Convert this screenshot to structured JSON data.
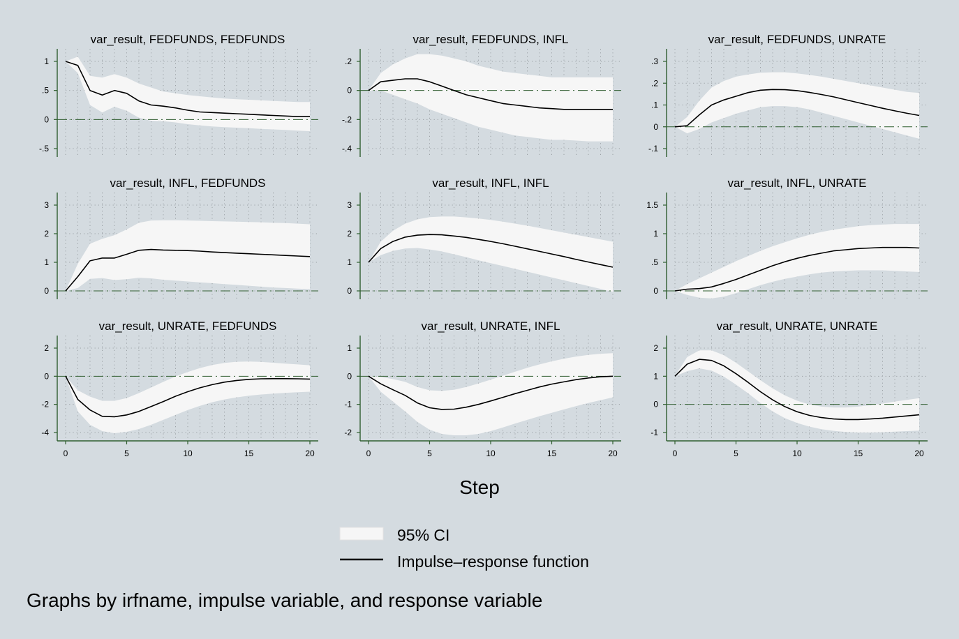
{
  "chart_data": {
    "type": "line",
    "xlabel": "Step",
    "x": [
      0,
      1,
      2,
      3,
      4,
      5,
      6,
      7,
      8,
      9,
      10,
      11,
      12,
      13,
      14,
      15,
      16,
      17,
      18,
      19,
      20
    ],
    "xticks": [
      0,
      5,
      10,
      15,
      20
    ],
    "xlim": [
      0,
      20
    ],
    "grid": true,
    "legend": {
      "position": "bottom-center",
      "entries": [
        {
          "name": "95% CI",
          "color": "#f6f6f6",
          "kind": "area"
        },
        {
          "name": "Impulse–response function",
          "color": "#000000",
          "kind": "line"
        }
      ]
    },
    "note": "Graphs by irfname, impulse variable, and response variable",
    "panels": [
      {
        "title": "var_result, FEDFUNDS, FEDFUNDS",
        "ylim": [
          -0.5,
          1
        ],
        "yticks": [
          {
            "v": -0.5,
            "label": "-.5"
          },
          {
            "v": 0,
            "label": "0"
          },
          {
            "v": 0.5,
            "label": ".5"
          },
          {
            "v": 1,
            "label": "1"
          }
        ],
        "irf": [
          1.0,
          0.93,
          0.5,
          0.42,
          0.5,
          0.45,
          0.32,
          0.25,
          0.23,
          0.2,
          0.16,
          0.13,
          0.12,
          0.11,
          0.1,
          0.09,
          0.08,
          0.07,
          0.06,
          0.05,
          0.05
        ],
        "upper": [
          1.0,
          1.08,
          0.75,
          0.72,
          0.78,
          0.72,
          0.62,
          0.55,
          0.48,
          0.45,
          0.42,
          0.4,
          0.38,
          0.36,
          0.35,
          0.34,
          0.33,
          0.32,
          0.31,
          0.3,
          0.3
        ],
        "lower": [
          1.0,
          0.8,
          0.25,
          0.12,
          0.22,
          0.15,
          0.03,
          -0.02,
          -0.03,
          -0.05,
          -0.08,
          -0.1,
          -0.12,
          -0.13,
          -0.14,
          -0.15,
          -0.16,
          -0.17,
          -0.18,
          -0.19,
          -0.2
        ]
      },
      {
        "title": "var_result, FEDFUNDS, INFL",
        "ylim": [
          -0.4,
          0.2
        ],
        "yticks": [
          {
            "v": -0.4,
            "label": "-.4"
          },
          {
            "v": -0.2,
            "label": "-.2"
          },
          {
            "v": 0,
            "label": "0"
          },
          {
            "v": 0.2,
            "label": ".2"
          }
        ],
        "irf": [
          0,
          0.06,
          0.07,
          0.08,
          0.08,
          0.06,
          0.03,
          0.0,
          -0.03,
          -0.05,
          -0.07,
          -0.09,
          -0.1,
          -0.11,
          -0.12,
          -0.125,
          -0.13,
          -0.13,
          -0.13,
          -0.13,
          -0.13
        ],
        "upper": [
          0,
          0.12,
          0.18,
          0.22,
          0.25,
          0.25,
          0.24,
          0.22,
          0.2,
          0.17,
          0.15,
          0.13,
          0.12,
          0.11,
          0.1,
          0.09,
          0.09,
          0.09,
          0.09,
          0.09,
          0.09
        ],
        "lower": [
          0,
          0.0,
          -0.03,
          -0.06,
          -0.09,
          -0.13,
          -0.16,
          -0.19,
          -0.22,
          -0.25,
          -0.27,
          -0.29,
          -0.31,
          -0.32,
          -0.33,
          -0.34,
          -0.34,
          -0.345,
          -0.35,
          -0.35,
          -0.35
        ]
      },
      {
        "title": "var_result, FEDFUNDS, UNRATE",
        "ylim": [
          -0.1,
          0.3
        ],
        "yticks": [
          {
            "v": -0.1,
            "label": "-.1"
          },
          {
            "v": 0,
            "label": "0"
          },
          {
            "v": 0.1,
            "label": ".1"
          },
          {
            "v": 0.2,
            "label": ".2"
          },
          {
            "v": 0.3,
            "label": ".3"
          }
        ],
        "irf": [
          0,
          0.005,
          0.055,
          0.1,
          0.123,
          0.14,
          0.157,
          0.168,
          0.171,
          0.17,
          0.166,
          0.158,
          0.148,
          0.137,
          0.124,
          0.111,
          0.098,
          0.085,
          0.073,
          0.062,
          0.052
        ],
        "upper": [
          0,
          0.045,
          0.12,
          0.18,
          0.21,
          0.23,
          0.24,
          0.248,
          0.25,
          0.25,
          0.245,
          0.238,
          0.23,
          0.22,
          0.21,
          0.2,
          0.19,
          0.18,
          0.17,
          0.16,
          0.155
        ],
        "lower": [
          0,
          -0.03,
          -0.01,
          0.02,
          0.04,
          0.06,
          0.075,
          0.09,
          0.095,
          0.095,
          0.09,
          0.08,
          0.065,
          0.05,
          0.035,
          0.02,
          0.005,
          -0.01,
          -0.025,
          -0.04,
          -0.055
        ]
      },
      {
        "title": "var_result, INFL, FEDFUNDS",
        "ylim": [
          0,
          3
        ],
        "yticks": [
          {
            "v": 0,
            "label": "0"
          },
          {
            "v": 1,
            "label": "1"
          },
          {
            "v": 2,
            "label": "2"
          },
          {
            "v": 3,
            "label": "3"
          }
        ],
        "irf": [
          0,
          0.5,
          1.05,
          1.15,
          1.15,
          1.28,
          1.42,
          1.45,
          1.43,
          1.42,
          1.41,
          1.39,
          1.36,
          1.34,
          1.32,
          1.3,
          1.28,
          1.26,
          1.24,
          1.22,
          1.2
        ],
        "upper": [
          0,
          0.95,
          1.65,
          1.82,
          1.95,
          2.15,
          2.38,
          2.46,
          2.47,
          2.47,
          2.46,
          2.45,
          2.44,
          2.43,
          2.42,
          2.41,
          2.4,
          2.38,
          2.37,
          2.35,
          2.33
        ],
        "lower": [
          0,
          0.1,
          0.42,
          0.45,
          0.38,
          0.41,
          0.46,
          0.44,
          0.39,
          0.36,
          0.33,
          0.3,
          0.27,
          0.24,
          0.21,
          0.18,
          0.15,
          0.12,
          0.1,
          0.08,
          0.06
        ]
      },
      {
        "title": "var_result, INFL, INFL",
        "ylim": [
          0,
          3
        ],
        "yticks": [
          {
            "v": 0,
            "label": "0"
          },
          {
            "v": 1,
            "label": "1"
          },
          {
            "v": 2,
            "label": "2"
          },
          {
            "v": 3,
            "label": "3"
          }
        ],
        "irf": [
          1.0,
          1.48,
          1.73,
          1.88,
          1.95,
          1.97,
          1.96,
          1.92,
          1.87,
          1.8,
          1.73,
          1.65,
          1.56,
          1.47,
          1.38,
          1.29,
          1.2,
          1.1,
          1.01,
          0.92,
          0.83
        ],
        "upper": [
          1.0,
          1.72,
          2.1,
          2.35,
          2.5,
          2.58,
          2.6,
          2.6,
          2.57,
          2.53,
          2.48,
          2.42,
          2.35,
          2.28,
          2.2,
          2.12,
          2.04,
          1.96,
          1.88,
          1.8,
          1.72
        ],
        "lower": [
          1.0,
          1.25,
          1.4,
          1.48,
          1.5,
          1.45,
          1.38,
          1.28,
          1.18,
          1.07,
          0.97,
          0.87,
          0.77,
          0.67,
          0.57,
          0.47,
          0.37,
          0.27,
          0.17,
          0.07,
          -0.03
        ]
      },
      {
        "title": "var_result, INFL, UNRATE",
        "ylim": [
          0,
          1.5
        ],
        "yticks": [
          {
            "v": 0,
            "label": "0"
          },
          {
            "v": 0.5,
            "label": ".5"
          },
          {
            "v": 1,
            "label": "1"
          },
          {
            "v": 1.5,
            "label": "1.5"
          }
        ],
        "irf": [
          0,
          0.03,
          0.04,
          0.07,
          0.13,
          0.2,
          0.28,
          0.36,
          0.44,
          0.51,
          0.57,
          0.62,
          0.66,
          0.7,
          0.72,
          0.74,
          0.75,
          0.76,
          0.76,
          0.76,
          0.75
        ],
        "upper": [
          0,
          0.12,
          0.22,
          0.32,
          0.42,
          0.52,
          0.61,
          0.7,
          0.78,
          0.85,
          0.92,
          0.98,
          1.03,
          1.07,
          1.1,
          1.13,
          1.15,
          1.16,
          1.17,
          1.17,
          1.17
        ],
        "lower": [
          0,
          -0.07,
          -0.12,
          -0.13,
          -0.1,
          -0.04,
          0.03,
          0.1,
          0.16,
          0.21,
          0.25,
          0.29,
          0.32,
          0.34,
          0.35,
          0.36,
          0.36,
          0.36,
          0.35,
          0.34,
          0.33
        ]
      },
      {
        "title": "var_result, UNRATE, FEDFUNDS",
        "ylim": [
          -4,
          2
        ],
        "yticks": [
          {
            "v": -4,
            "label": "-4"
          },
          {
            "v": -2,
            "label": "-2"
          },
          {
            "v": 0,
            "label": "0"
          },
          {
            "v": 2,
            "label": "2"
          }
        ],
        "irf": [
          0,
          -1.65,
          -2.4,
          -2.85,
          -2.88,
          -2.75,
          -2.5,
          -2.15,
          -1.8,
          -1.42,
          -1.1,
          -0.82,
          -0.6,
          -0.42,
          -0.3,
          -0.22,
          -0.18,
          -0.17,
          -0.17,
          -0.18,
          -0.2
        ],
        "upper": [
          0,
          -1.0,
          -1.45,
          -1.75,
          -1.75,
          -1.55,
          -1.2,
          -0.8,
          -0.4,
          -0.02,
          0.3,
          0.58,
          0.8,
          0.95,
          1.03,
          1.05,
          1.02,
          0.96,
          0.9,
          0.84,
          0.78
        ],
        "lower": [
          0,
          -2.5,
          -3.45,
          -3.9,
          -4.05,
          -3.95,
          -3.75,
          -3.45,
          -3.1,
          -2.75,
          -2.4,
          -2.1,
          -1.85,
          -1.65,
          -1.5,
          -1.38,
          -1.3,
          -1.24,
          -1.18,
          -1.14,
          -1.1
        ]
      },
      {
        "title": "var_result, UNRATE, INFL",
        "ylim": [
          -2,
          1
        ],
        "yticks": [
          {
            "v": -2,
            "label": "-2"
          },
          {
            "v": -1,
            "label": "-1"
          },
          {
            "v": 0,
            "label": "0"
          },
          {
            "v": 1,
            "label": "1"
          }
        ],
        "irf": [
          0,
          -0.27,
          -0.48,
          -0.68,
          -0.95,
          -1.12,
          -1.18,
          -1.17,
          -1.1,
          -1.0,
          -0.88,
          -0.75,
          -0.62,
          -0.5,
          -0.38,
          -0.28,
          -0.2,
          -0.12,
          -0.06,
          -0.02,
          0.0
        ],
        "upper": [
          0,
          -0.03,
          -0.1,
          -0.2,
          -0.38,
          -0.5,
          -0.52,
          -0.48,
          -0.38,
          -0.26,
          -0.12,
          0.02,
          0.16,
          0.3,
          0.42,
          0.53,
          0.62,
          0.7,
          0.76,
          0.8,
          0.82
        ],
        "lower": [
          0,
          -0.55,
          -0.9,
          -1.25,
          -1.62,
          -1.9,
          -2.05,
          -2.1,
          -2.1,
          -2.05,
          -1.95,
          -1.82,
          -1.68,
          -1.55,
          -1.42,
          -1.3,
          -1.18,
          -1.06,
          -0.95,
          -0.85,
          -0.75
        ]
      },
      {
        "title": "var_result, UNRATE, UNRATE",
        "ylim": [
          -1,
          2
        ],
        "yticks": [
          {
            "v": -1,
            "label": "-1"
          },
          {
            "v": 0,
            "label": "0"
          },
          {
            "v": 1,
            "label": "1"
          },
          {
            "v": 2,
            "label": "2"
          }
        ],
        "irf": [
          1.0,
          1.43,
          1.6,
          1.56,
          1.37,
          1.09,
          0.78,
          0.45,
          0.16,
          -0.08,
          -0.26,
          -0.39,
          -0.47,
          -0.52,
          -0.54,
          -0.54,
          -0.52,
          -0.49,
          -0.45,
          -0.41,
          -0.37
        ],
        "upper": [
          1.0,
          1.68,
          1.92,
          1.92,
          1.75,
          1.48,
          1.17,
          0.86,
          0.57,
          0.32,
          0.13,
          0.0,
          -0.08,
          -0.11,
          -0.11,
          -0.08,
          -0.03,
          0.03,
          0.1,
          0.16,
          0.22
        ],
        "lower": [
          1.0,
          1.18,
          1.28,
          1.2,
          0.99,
          0.7,
          0.39,
          0.05,
          -0.25,
          -0.49,
          -0.66,
          -0.79,
          -0.88,
          -0.94,
          -0.98,
          -1.0,
          -1.0,
          -0.99,
          -0.97,
          -0.95,
          -0.93
        ]
      }
    ]
  }
}
